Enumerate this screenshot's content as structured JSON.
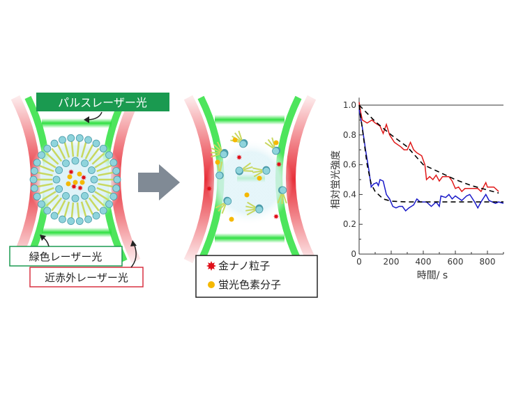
{
  "left_panel": {
    "pulse_label": "パルスレーザー光",
    "green_label": "緑色レーザー光",
    "nir_label": "近赤外レーザー光"
  },
  "legend": {
    "items": [
      {
        "label": "金ナノ粒子",
        "icon": "red-star-gold-nanoparticle",
        "color": "#e0101a"
      },
      {
        "label": "蛍光色素分子",
        "icon": "yellow-dot-fluorescent-dye",
        "color": "#f5b800"
      }
    ]
  },
  "colors": {
    "green": "#1a9a50",
    "red_laser": "#e8303a",
    "green_laser": "#2ee040",
    "lipid_head": "#8fd4dc",
    "arrow": "#808a95"
  },
  "chart_data": {
    "type": "line",
    "xlabel": "時間/ s",
    "ylabel": "相対蛍光強度",
    "xlim": [
      0,
      900
    ],
    "ylim": [
      0,
      1.05
    ],
    "xticks": [
      "0",
      "200",
      "400",
      "600",
      "800"
    ],
    "yticks": [
      "0",
      "0.2",
      "0.4",
      "0.6",
      "0.8",
      "1.0"
    ],
    "reference_line": 1.0,
    "series": [
      {
        "color": "#e01818",
        "style": "solid",
        "x": [
          0,
          10,
          20,
          50,
          80,
          100,
          130,
          150,
          170,
          190,
          220,
          260,
          280,
          300,
          320,
          340,
          360,
          390,
          410,
          420,
          440,
          460,
          480,
          500,
          520,
          560,
          580,
          600,
          620,
          640,
          660,
          700,
          740,
          760,
          790,
          800,
          820,
          840,
          870
        ],
        "y": [
          1.02,
          0.95,
          0.9,
          0.88,
          0.9,
          0.88,
          0.86,
          0.81,
          0.87,
          0.8,
          0.75,
          0.72,
          0.7,
          0.7,
          0.75,
          0.7,
          0.68,
          0.66,
          0.6,
          0.5,
          0.52,
          0.5,
          0.53,
          0.49,
          0.52,
          0.52,
          0.49,
          0.44,
          0.45,
          0.42,
          0.44,
          0.44,
          0.44,
          0.42,
          0.48,
          0.45,
          0.45,
          0.45,
          0.42
        ]
      },
      {
        "color": "#1818c8",
        "style": "solid",
        "x": [
          0,
          20,
          40,
          60,
          75,
          90,
          110,
          120,
          130,
          150,
          170,
          190,
          210,
          230,
          250,
          270,
          290,
          310,
          340,
          360,
          380,
          420,
          450,
          480,
          500,
          510,
          540,
          560,
          580,
          600,
          640,
          670,
          690,
          720,
          740,
          760,
          790,
          810,
          830,
          850,
          870,
          900
        ],
        "y": [
          0.97,
          0.85,
          0.7,
          0.57,
          0.45,
          0.47,
          0.48,
          0.46,
          0.5,
          0.49,
          0.4,
          0.37,
          0.32,
          0.31,
          0.32,
          0.32,
          0.29,
          0.31,
          0.33,
          0.37,
          0.35,
          0.35,
          0.32,
          0.35,
          0.32,
          0.39,
          0.38,
          0.4,
          0.37,
          0.39,
          0.36,
          0.39,
          0.4,
          0.35,
          0.31,
          0.35,
          0.4,
          0.36,
          0.35,
          0.34,
          0.35,
          0.34
        ]
      },
      {
        "color": "#000000",
        "style": "dashed",
        "x": [
          0,
          100,
          200,
          300,
          400,
          500,
          600,
          700,
          800,
          870
        ],
        "y": [
          1.0,
          0.89,
          0.8,
          0.72,
          0.6,
          0.55,
          0.5,
          0.46,
          0.43,
          0.41
        ]
      },
      {
        "color": "#000000",
        "style": "dashed",
        "x": [
          0,
          25,
          50,
          75,
          100,
          150,
          200,
          300,
          400,
          600,
          900
        ],
        "y": [
          1.0,
          0.8,
          0.6,
          0.47,
          0.42,
          0.37,
          0.355,
          0.35,
          0.35,
          0.35,
          0.35
        ]
      }
    ]
  }
}
